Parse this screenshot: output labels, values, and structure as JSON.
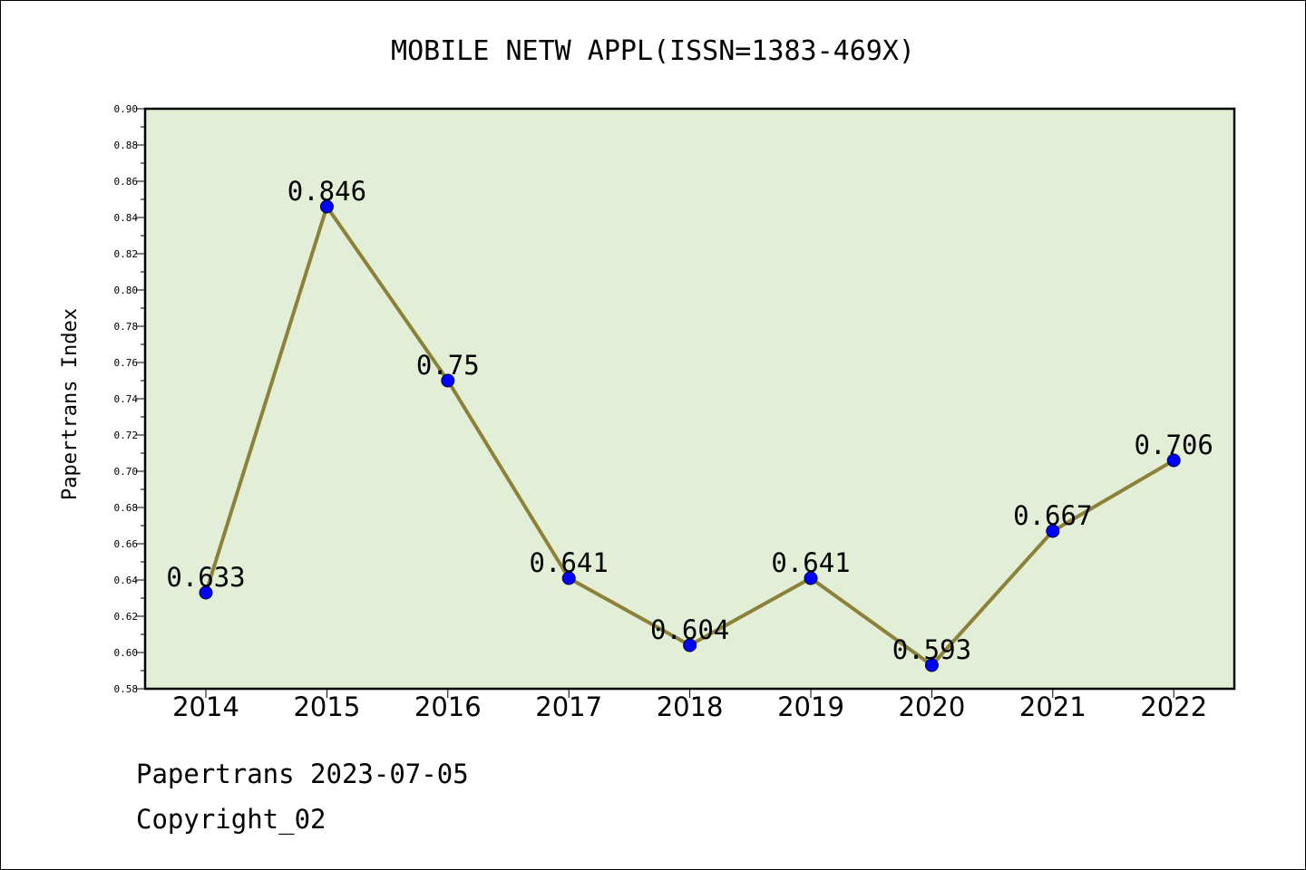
{
  "chart_data": {
    "type": "line",
    "title": "MOBILE NETW APPL(ISSN=1383-469X)",
    "xlabel": "",
    "ylabel": "Papertrans Index",
    "x": [
      "2014",
      "2015",
      "2016",
      "2017",
      "2018",
      "2019",
      "2020",
      "2021",
      "2022"
    ],
    "series": [
      {
        "values": [
          0.633,
          0.846,
          0.75,
          0.641,
          0.604,
          0.641,
          0.593,
          0.667,
          0.706
        ],
        "labels": [
          "0.633",
          "0.846",
          "0.75",
          "0.641",
          "0.604",
          "0.641",
          "0.593",
          "0.667",
          "0.706"
        ]
      }
    ],
    "ylim": [
      0.58,
      0.9
    ],
    "yticks": [
      "0.58",
      "0.60",
      "0.62",
      "0.64",
      "0.66",
      "0.68",
      "0.70",
      "0.72",
      "0.74",
      "0.76",
      "0.78",
      "0.80",
      "0.82",
      "0.84",
      "0.86",
      "0.88",
      "0.90"
    ],
    "grid": false,
    "colors": {
      "line": "#8b8139",
      "marker": "#0000ff",
      "plot_background": "#e2efd6",
      "axes": "#000000"
    }
  },
  "footer": {
    "date_line": "Papertrans 2023-07-05",
    "copyright": "Copyright_02"
  }
}
